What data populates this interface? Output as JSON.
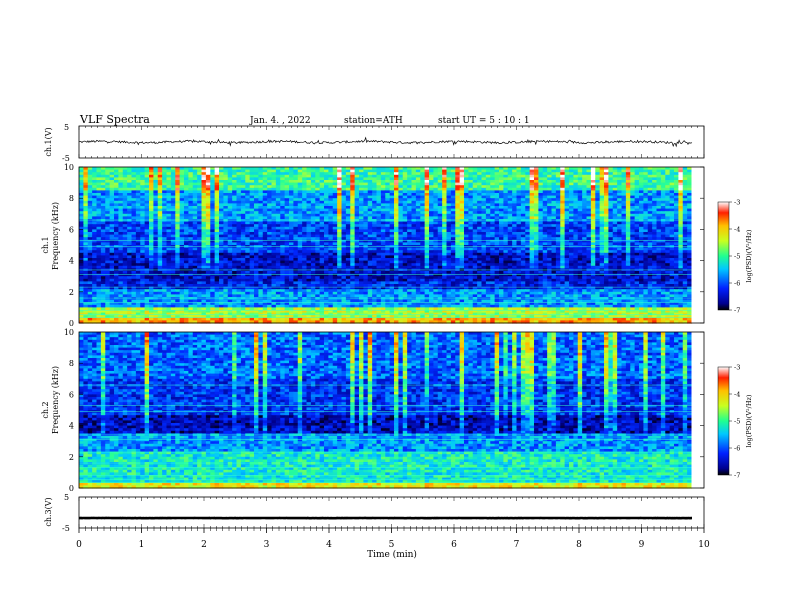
{
  "header": {
    "title": "VLF  Spectra",
    "date": "Jan. 4. , 2022",
    "station": "station=ATH",
    "start": "start  UT  =    5  : 10 : 1"
  },
  "chart_data": [
    {
      "type": "line",
      "panel": "ch1_waveform",
      "ylabel": "ch.1(V)",
      "ylim": [
        -5,
        5
      ],
      "y_ticks": [
        "5",
        "-5"
      ],
      "xlim": [
        0,
        10
      ],
      "line_color": "#000000",
      "baseline": 0
    },
    {
      "type": "heatmap",
      "panel": "ch1_spectrogram",
      "ylabel_line1": "ch.1",
      "ylabel_line2": "Frequency  (kHz)",
      "ylim": [
        0,
        10
      ],
      "y_ticks": [
        "0",
        "2",
        "4",
        "6",
        "8",
        "10"
      ],
      "xlim": [
        0,
        9.8
      ],
      "colorbar": {
        "label": "log(PSD)(V²/Hz)",
        "ticks": [
          "-3",
          "-4",
          "-5",
          "-6",
          "-7"
        ],
        "range": [
          -7,
          -3
        ]
      }
    },
    {
      "type": "heatmap",
      "panel": "ch2_spectrogram",
      "ylabel_line1": "ch.2",
      "ylabel_line2": "Frequency  (kHz)",
      "ylim": [
        0,
        10
      ],
      "y_ticks": [
        "0",
        "2",
        "4",
        "6",
        "8",
        "10"
      ],
      "xlim": [
        0,
        9.8
      ],
      "colorbar": {
        "label": "log(PSD)(V²/Hz)",
        "ticks": [
          "-3",
          "-4",
          "-5",
          "-6",
          "-7"
        ],
        "range": [
          -7,
          -3
        ]
      }
    },
    {
      "type": "line",
      "panel": "ch3_waveform",
      "ylabel": "ch.3(V)",
      "ylim": [
        -5,
        5
      ],
      "y_ticks": [
        "5",
        "-5"
      ],
      "xlim": [
        0,
        10
      ],
      "line_color": "#000000",
      "baseline": -1.8
    }
  ],
  "x_axis": {
    "label": "Time  (min)",
    "ticks": [
      "0",
      "1",
      "2",
      "3",
      "4",
      "5",
      "6",
      "7",
      "8",
      "9",
      "10"
    ]
  }
}
